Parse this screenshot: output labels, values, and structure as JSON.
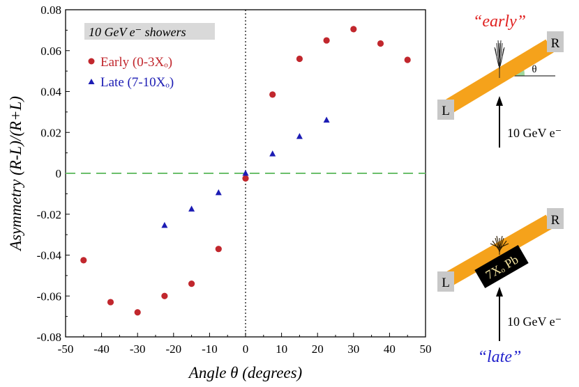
{
  "chart_data": {
    "type": "scatter",
    "title": "10 GeV e⁻ showers",
    "xlabel": "Angle θ (degrees)",
    "ylabel": "Asymmetry (R-L)/(R+L)",
    "xlim": [
      -50,
      50
    ],
    "ylim": [
      -0.08,
      0.08
    ],
    "xticks": [
      -50,
      -40,
      -30,
      -20,
      -10,
      0,
      10,
      20,
      30,
      40,
      50
    ],
    "xtick_labels": [
      "-50",
      "-40",
      "-30",
      "-20",
      "-10",
      "0",
      "10",
      "20",
      "30",
      "40",
      "50"
    ],
    "yticks": [
      -0.08,
      -0.06,
      -0.04,
      -0.02,
      0,
      0.02,
      0.04,
      0.06,
      0.08
    ],
    "ytick_labels": [
      "-0.08",
      "-0.06",
      "-0.04",
      "-0.02",
      "0",
      "0.02",
      "0.04",
      "0.06",
      "0.08"
    ],
    "reference_line_y": 0,
    "reference_line_x": 0,
    "legend_position": "top-left",
    "series": [
      {
        "name": "Early (0-3Xₒ)",
        "marker": "circle",
        "color": "#c1272d",
        "x": [
          -45,
          -37.5,
          -30,
          -22.5,
          -15,
          -7.5,
          0,
          7.5,
          15,
          22.5,
          30,
          37.5,
          45
        ],
        "y": [
          -0.0425,
          -0.063,
          -0.068,
          -0.06,
          -0.054,
          -0.037,
          -0.0025,
          0.0385,
          0.056,
          0.065,
          0.0705,
          0.0635,
          0.0555
        ]
      },
      {
        "name": "Late (7-10Xₒ)",
        "marker": "triangle",
        "color": "#1c1cb4",
        "x": [
          -22.5,
          -15,
          -7.5,
          0,
          7.5,
          15,
          22.5
        ],
        "y": [
          -0.0255,
          -0.0175,
          -0.0095,
          0.0,
          0.0095,
          0.018,
          0.026
        ]
      }
    ]
  },
  "diagram": {
    "early_label": "“early”",
    "late_label": "“late”",
    "left_end": "L",
    "right_end": "R",
    "angle_symbol": "θ",
    "beam_label": "10 GeV e⁻",
    "absorber_label": "7Xₒ Pb",
    "colors": {
      "bar": "#f5a21b",
      "end_cap": "#c8c8c8",
      "angle_wedge": "#9fd89f",
      "early_text": "#e0201f",
      "late_text": "#2222cc",
      "absorber_bg": "#000000",
      "absorber_text": "#f5e6a0"
    }
  }
}
